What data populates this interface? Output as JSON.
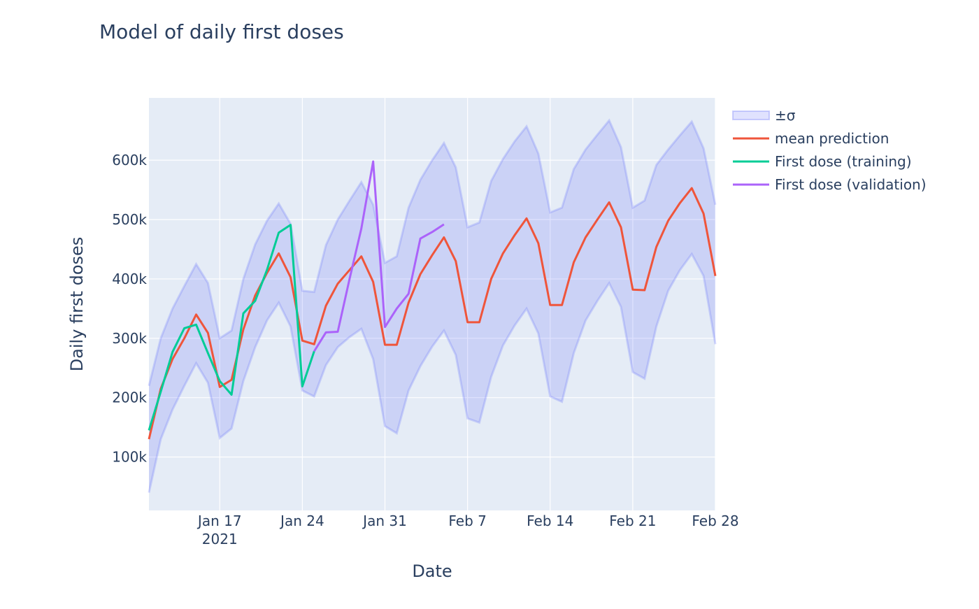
{
  "chart_data": {
    "type": "line",
    "title": "Model of daily first doses",
    "xlabel": "Date",
    "ylabel": "Daily first doses",
    "x_start": "2021-01-11",
    "x_end": "2021-02-28",
    "xlim": [
      "2021-01-11",
      "2021-02-28"
    ],
    "ylim": [
      10000,
      705000
    ],
    "grid": true,
    "legend_position": "top-right",
    "x_ticks": [
      {
        "date": "2021-01-17",
        "label": "Jan 17",
        "sublabel": "2021"
      },
      {
        "date": "2021-01-24",
        "label": "Jan 24"
      },
      {
        "date": "2021-01-31",
        "label": "Jan 31"
      },
      {
        "date": "2021-02-07",
        "label": "Feb 7"
      },
      {
        "date": "2021-02-14",
        "label": "Feb 14"
      },
      {
        "date": "2021-02-21",
        "label": "Feb 21"
      },
      {
        "date": "2021-02-28",
        "label": "Feb 28"
      }
    ],
    "y_ticks": [
      {
        "value": 100000,
        "label": "100k"
      },
      {
        "value": 200000,
        "label": "200k"
      },
      {
        "value": 300000,
        "label": "300k"
      },
      {
        "value": 400000,
        "label": "400k"
      },
      {
        "value": 500000,
        "label": "500k"
      },
      {
        "value": 600000,
        "label": "600k"
      }
    ],
    "band": {
      "name": "±σ",
      "color": "#636efa",
      "upper": [
        220000,
        300000,
        350000,
        388000,
        425000,
        393000,
        300000,
        313000,
        400000,
        458000,
        498000,
        527000,
        493000,
        380000,
        378000,
        457000,
        500000,
        532000,
        563000,
        525000,
        427000,
        438000,
        520000,
        567000,
        600000,
        629000,
        588000,
        487000,
        495000,
        565000,
        602000,
        632000,
        657000,
        611000,
        512000,
        520000,
        585000,
        618000,
        643000,
        667000,
        622000,
        520000,
        532000,
        592000,
        618000,
        642000,
        665000,
        620000,
        525000
      ],
      "lower": [
        40000,
        130000,
        180000,
        220000,
        258000,
        225000,
        132000,
        148000,
        228000,
        285000,
        330000,
        360000,
        320000,
        212000,
        202000,
        255000,
        285000,
        302000,
        316000,
        265000,
        152000,
        140000,
        212000,
        253000,
        286000,
        313000,
        272000,
        165000,
        158000,
        235000,
        288000,
        322000,
        350000,
        308000,
        202000,
        193000,
        275000,
        330000,
        363000,
        393000,
        353000,
        243000,
        232000,
        320000,
        380000,
        415000,
        442000,
        405000,
        290000
      ]
    },
    "series": [
      {
        "name": "mean prediction",
        "color": "#ef553b",
        "start_index": 0,
        "values": [
          130000,
          215000,
          265000,
          300000,
          340000,
          309000,
          218000,
          230000,
          315000,
          372000,
          410000,
          443000,
          403000,
          296000,
          290000,
          355000,
          392000,
          415000,
          438000,
          395000,
          289000,
          289000,
          360000,
          408000,
          440000,
          470000,
          430000,
          327000,
          327000,
          400000,
          443000,
          474000,
          502000,
          460000,
          356000,
          356000,
          428000,
          470000,
          500000,
          529000,
          487000,
          382000,
          381000,
          454000,
          498000,
          528000,
          553000,
          510000,
          405000
        ]
      },
      {
        "name": "First dose (training)",
        "color": "#00cc96",
        "start_index": 0,
        "values": [
          145000,
          210000,
          277000,
          317000,
          323000,
          275000,
          228000,
          205000,
          342000,
          363000,
          415000,
          478000,
          491000,
          219000,
          278000
        ]
      },
      {
        "name": "First dose (validation)",
        "color": "#ab63fa",
        "start_index": 14,
        "values": [
          278000,
          310000,
          311000,
          400000,
          485000,
          598000,
          319000,
          350000,
          375000,
          468000,
          479000,
          492000
        ]
      }
    ]
  }
}
